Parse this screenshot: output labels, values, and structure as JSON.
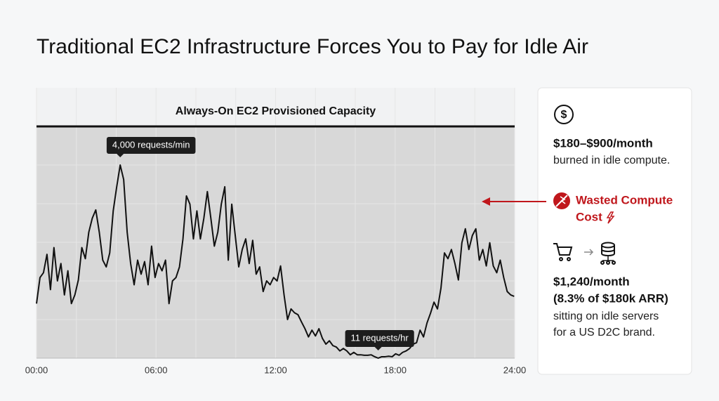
{
  "title": "Traditional EC2 Infrastructure Forces You to Pay for Idle Air",
  "chart_data": {
    "type": "line",
    "capacity": {
      "value": 4800,
      "label": "Always-On EC2 Provisioned Capacity",
      "color": "#111111"
    },
    "area_color": "#d8d8d8",
    "x": [
      0,
      0.175,
      0.35,
      0.525,
      0.7,
      0.875,
      1.05,
      1.225,
      1.4,
      1.575,
      1.75,
      1.925,
      2.1,
      2.275,
      2.45,
      2.625,
      2.8,
      2.975,
      3.15,
      3.325,
      3.5,
      3.675,
      3.85,
      4.025,
      4.2,
      4.375,
      4.55,
      4.725,
      4.9,
      5.075,
      5.25,
      5.425,
      5.6,
      5.775,
      5.95,
      6.125,
      6.3,
      6.475,
      6.65,
      6.825,
      7,
      7.175,
      7.35,
      7.525,
      7.7,
      7.875,
      8.05,
      8.225,
      8.4,
      8.575,
      8.75,
      8.925,
      9.1,
      9.275,
      9.45,
      9.625,
      9.8,
      9.975,
      10.15,
      10.325,
      10.5,
      10.675,
      10.85,
      11.025,
      11.2,
      11.375,
      11.55,
      11.725,
      11.9,
      12.075,
      12.25,
      12.425,
      12.6,
      12.775,
      12.95,
      13.125,
      13.3,
      13.475,
      13.65,
      13.825,
      14,
      14.175,
      14.35,
      14.525,
      14.7,
      14.875,
      15.05,
      15.225,
      15.4,
      15.575,
      15.75,
      15.925,
      16.1,
      16.275,
      16.45,
      16.625,
      16.8,
      16.975,
      17.15,
      17.325,
      17.5,
      17.675,
      17.85,
      18.025,
      18.2,
      18.375,
      18.55,
      18.725,
      18.9,
      19.075,
      19.25,
      19.425,
      19.6,
      19.775,
      19.95,
      20.125,
      20.3,
      20.475,
      20.65,
      20.825,
      21,
      21.175,
      21.35,
      21.525,
      21.7,
      21.875,
      22.05,
      22.225,
      22.4,
      22.575,
      22.75,
      22.925,
      23.1,
      23.275,
      23.45,
      23.625,
      23.8,
      23.975
    ],
    "series": [
      {
        "color": "#111111",
        "values": [
          1130,
          1670,
          1770,
          2150,
          1420,
          2290,
          1600,
          1960,
          1310,
          1810,
          1130,
          1310,
          1620,
          2290,
          2060,
          2610,
          2900,
          3070,
          2610,
          2030,
          1890,
          2180,
          3050,
          3550,
          4000,
          3700,
          2610,
          1960,
          1520,
          2030,
          1740,
          2000,
          1520,
          2320,
          1670,
          1960,
          1810,
          2030,
          1130,
          1600,
          1670,
          1890,
          2470,
          3360,
          3190,
          2470,
          3050,
          2470,
          2900,
          3450,
          2900,
          2320,
          2610,
          3190,
          3550,
          2030,
          3190,
          2540,
          1890,
          2250,
          2470,
          1960,
          2440,
          1740,
          1890,
          1380,
          1600,
          1520,
          1670,
          1600,
          1910,
          1310,
          800,
          1020,
          940,
          900,
          750,
          610,
          440,
          580,
          460,
          610,
          410,
          290,
          360,
          260,
          230,
          150,
          200,
          150,
          70,
          120,
          70,
          70,
          60,
          60,
          70,
          30,
          0.18,
          30,
          30,
          40,
          30,
          90,
          60,
          120,
          150,
          200,
          290,
          320,
          580,
          440,
          730,
          930,
          1160,
          1020,
          1450,
          2180,
          2060,
          2250,
          1960,
          1620,
          2390,
          2680,
          2250,
          2540,
          2680,
          2030,
          2250,
          1910,
          2390,
          1910,
          1770,
          2030,
          1670,
          1380,
          1310,
          1280
        ],
        "value_labels": [
          null,
          null,
          null,
          null,
          null,
          null,
          null,
          null,
          null,
          null,
          null,
          null,
          null,
          null,
          null,
          null,
          null,
          null,
          null,
          null,
          null,
          null,
          null,
          null,
          "4,000 requests/min",
          null,
          null,
          null,
          null,
          null,
          null,
          null,
          null,
          null,
          null,
          null,
          null,
          null,
          null,
          null,
          null,
          null,
          null,
          null,
          null,
          null,
          null,
          null,
          null,
          null,
          null,
          null,
          null,
          null,
          null,
          null,
          null,
          null,
          null,
          null,
          null,
          null,
          null,
          null,
          null,
          null,
          null,
          null,
          null,
          null,
          null,
          null,
          null,
          null,
          null,
          null,
          null,
          null,
          null,
          null,
          null,
          null,
          null,
          null,
          null,
          null,
          null,
          null,
          null,
          null,
          null,
          null,
          null,
          null,
          null,
          null,
          null,
          null,
          "11 requests/hr",
          null,
          null,
          null,
          null,
          null,
          null,
          null,
          null,
          null,
          null,
          null,
          null,
          null,
          null,
          null,
          null,
          null,
          null,
          null,
          null,
          null,
          null,
          null,
          null,
          null,
          null,
          null,
          null,
          null,
          null,
          null,
          null,
          null,
          null,
          null,
          null,
          null,
          null
        ]
      }
    ],
    "xlim": [
      0,
      24
    ],
    "xticks": [
      {
        "value": 0,
        "label": "00:00"
      },
      {
        "value": 6,
        "label": "06:00"
      },
      {
        "value": 12,
        "label": "12:00"
      },
      {
        "value": 18,
        "label": "18:00"
      },
      {
        "value": 24,
        "label": "24:00"
      }
    ],
    "xgrid": [
      2,
      4,
      8,
      10,
      14,
      16,
      20,
      22
    ],
    "ylim": [
      0,
      5600
    ],
    "yticks": [
      800,
      1600,
      2400,
      3200,
      4000,
      4800
    ],
    "grid": true
  },
  "panel": {
    "cost": {
      "amount": "$180–$900/month",
      "text": "burned in idle compute."
    },
    "waste": {
      "line1": "Wasted Compute",
      "line2": "Cost"
    },
    "example": {
      "amount": "$1,240/month",
      "share": "(8.3% of $180k ARR)",
      "line1": "sitting on idle servers",
      "line2": "for a US D2C brand."
    }
  }
}
